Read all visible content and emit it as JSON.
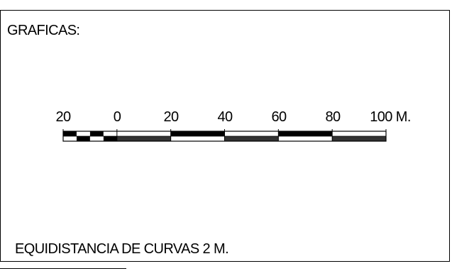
{
  "title": "GRAFICAS:",
  "scale_bar": {
    "tick_labels": [
      "20",
      "0",
      "20",
      "40",
      "60",
      "80",
      "100 M."
    ],
    "tick_values": [
      -20,
      0,
      20,
      40,
      60,
      80,
      100
    ],
    "unit": "M.",
    "subdivision_step": 5,
    "colors": {
      "ink": "#000000",
      "paper": "#ffffff",
      "fill": "#333333"
    }
  },
  "note": "EQUIDISTANCIA DE CURVAS 2 M."
}
